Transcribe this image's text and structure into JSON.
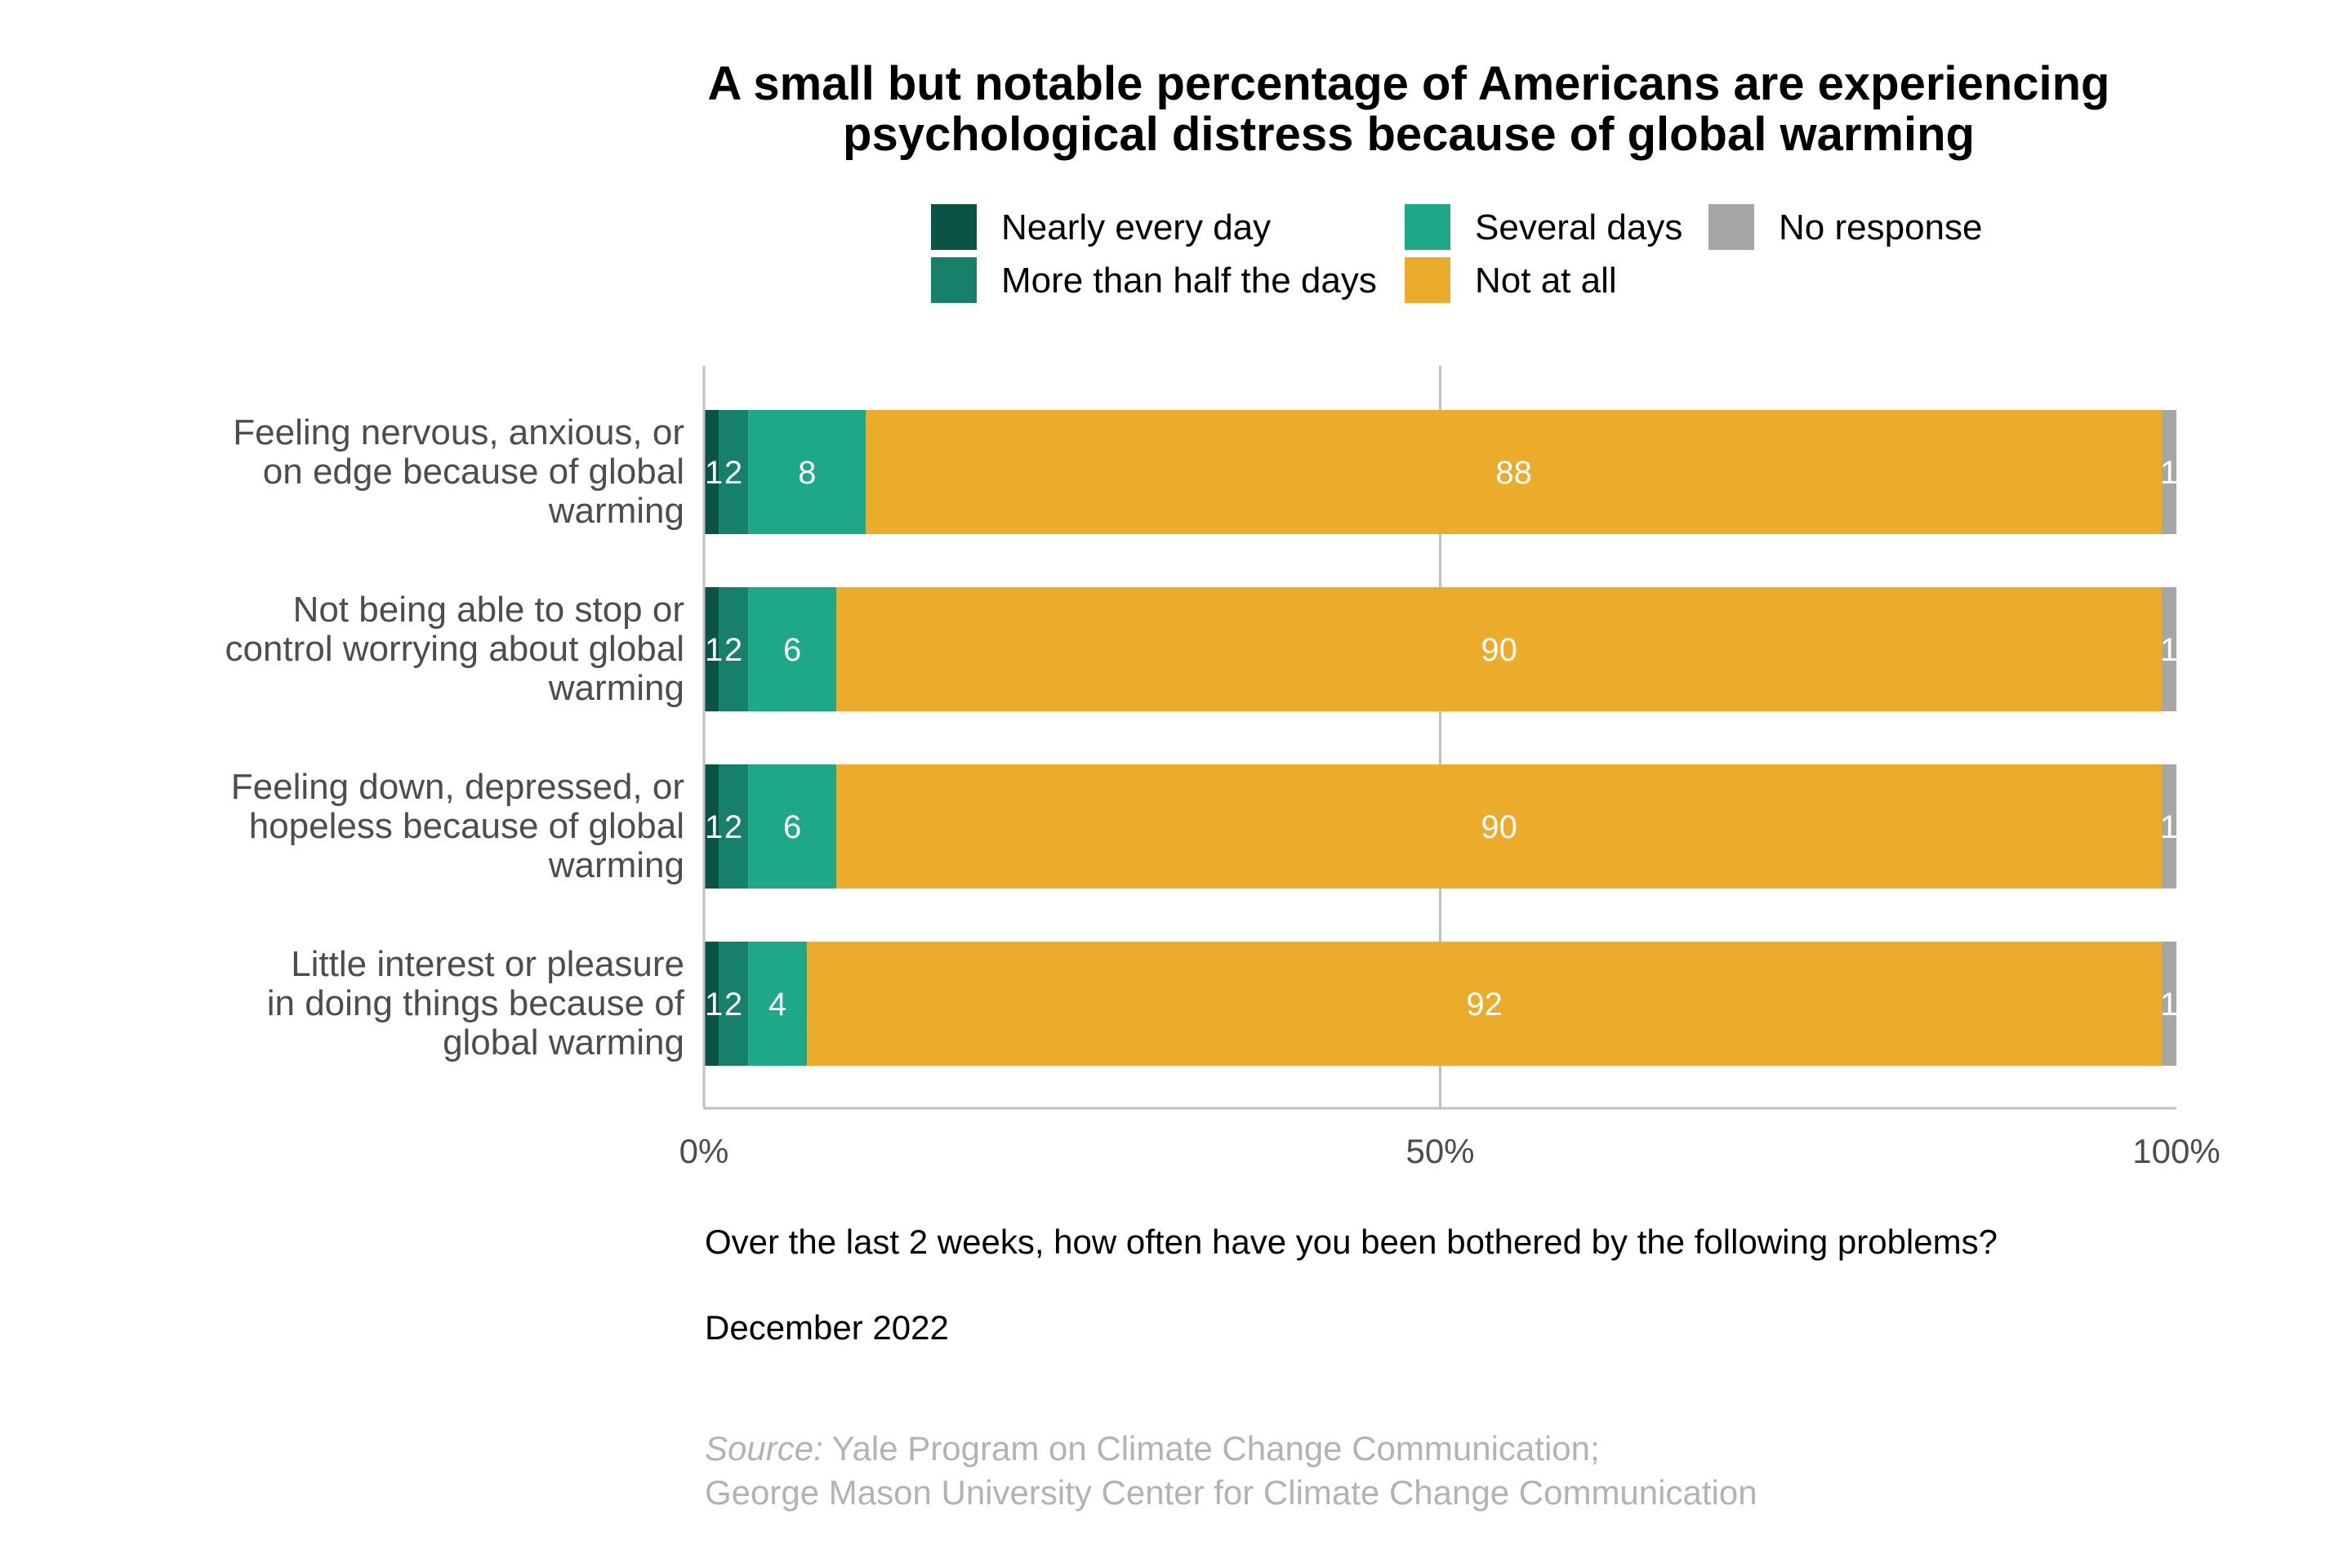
{
  "chart_data": {
    "type": "bar",
    "orientation": "horizontal",
    "stacked": true,
    "title_lines": [
      "A small but notable percentage of Americans are experiencing",
      "psychological distress because of global warming"
    ],
    "categories": [
      [
        "Feeling nervous, anxious, or",
        "on edge because of global",
        "warming"
      ],
      [
        "Not being able to stop or",
        "control worrying about global",
        "warming"
      ],
      [
        "Feeling down, depressed, or",
        "hopeless because of global",
        "warming"
      ],
      [
        "Little interest or pleasure",
        "in doing things because of",
        "global warming"
      ]
    ],
    "series": [
      {
        "name": "Nearly every day",
        "color": "#0b5345",
        "values": [
          1,
          1,
          1,
          1
        ]
      },
      {
        "name": "More than half the days",
        "color": "#17806a",
        "values": [
          2,
          2,
          2,
          2
        ]
      },
      {
        "name": "Several days",
        "color": "#1da888",
        "values": [
          8,
          6,
          6,
          4
        ]
      },
      {
        "name": "Not at all",
        "color": "#ebab2b",
        "values": [
          88,
          90,
          90,
          92
        ]
      },
      {
        "name": "No response",
        "color": "#a6a6a6",
        "values": [
          1,
          1,
          1,
          1
        ]
      }
    ],
    "legend_order": [
      "Nearly every day",
      "More than half the days",
      "Several days",
      "Not at all",
      "No response"
    ],
    "legend_position": "top",
    "xlim": [
      0,
      100
    ],
    "xticks": [
      "0%",
      "50%",
      "100%"
    ],
    "gridlines": [
      50
    ],
    "caption_question": "Over the last 2 weeks, how often have you been bothered by the following problems?",
    "caption_date": "December 2022",
    "source_label": "Source:",
    "source_line1": " Yale Program on Climate Change Communication;",
    "source_line2": "George Mason University Center for Climate Change Communication"
  }
}
